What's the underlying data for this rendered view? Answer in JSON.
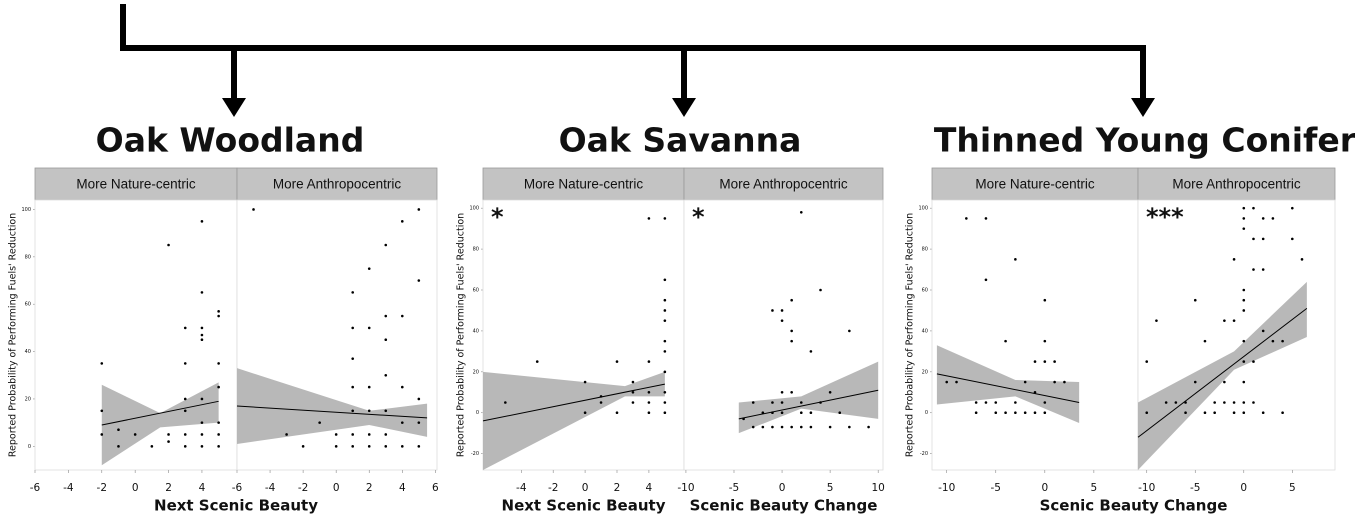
{
  "chart_data": [
    {
      "type": "scatter",
      "title": "Oak Woodland",
      "y_label": "Reported Probability of Performing Fuels' Reduction",
      "x_label": "Next Scenic Beauty",
      "ylim": [
        -10,
        104
      ],
      "yticks": [
        0,
        20,
        40,
        60,
        80,
        100
      ],
      "facets": [
        {
          "label": "More Nature-centric",
          "xlim": [
            -6,
            6.1
          ],
          "xticks": [
            -6,
            -4,
            -2,
            0,
            2,
            4
          ],
          "x": [
            -2,
            -2,
            -2,
            -1,
            -1,
            0,
            1,
            2,
            2,
            2,
            3,
            3,
            3,
            3,
            3,
            3,
            4,
            4,
            4,
            4,
            4,
            4,
            4,
            4,
            4,
            5,
            5,
            5,
            5,
            5,
            5,
            5
          ],
          "y": [
            35,
            15,
            5,
            7,
            0,
            5,
            0,
            85,
            5,
            2,
            50,
            35,
            20,
            15,
            5,
            0,
            95,
            65,
            50,
            47,
            45,
            20,
            10,
            5,
            0,
            57,
            55,
            35,
            25,
            10,
            5,
            0
          ],
          "fit": {
            "x": [
              -2,
              5
            ],
            "y": [
              9,
              19
            ]
          },
          "band": {
            "x": [
              -2,
              1.5,
              5
            ],
            "lower": [
              -8,
              8,
              10
            ],
            "upper": [
              26,
              14,
              27
            ]
          }
        },
        {
          "label": "More Anthropocentric",
          "xlim": [
            -6,
            6.1
          ],
          "xticks": [
            -6,
            -4,
            -2,
            0,
            2,
            4,
            6
          ],
          "x": [
            -5,
            -3,
            -2,
            -1,
            0,
            0,
            1,
            1,
            1,
            1,
            1,
            1,
            1,
            2,
            2,
            2,
            2,
            2,
            2,
            3,
            3,
            3,
            3,
            3,
            3,
            3,
            4,
            4,
            4,
            4,
            4,
            5,
            5,
            5,
            5,
            5
          ],
          "y": [
            100,
            5,
            0,
            10,
            5,
            0,
            65,
            50,
            37,
            25,
            15,
            5,
            0,
            75,
            50,
            25,
            15,
            5,
            0,
            85,
            55,
            45,
            30,
            15,
            5,
            0,
            95,
            55,
            25,
            10,
            0,
            100,
            70,
            20,
            10,
            0
          ],
          "fit": {
            "x": [
              -6,
              5.5
            ],
            "y": [
              17,
              12
            ]
          },
          "band": {
            "x": [
              -6,
              2,
              5.5
            ],
            "lower": [
              1,
              9,
              4
            ],
            "upper": [
              33,
              15,
              18
            ]
          }
        }
      ]
    },
    {
      "type": "scatter",
      "title": "Oak Savanna",
      "y_label": "Reported Probability of Performing Fuels' Reduction",
      "ylim": [
        -28,
        104
      ],
      "yticks": [
        -20,
        0,
        20,
        40,
        60,
        80,
        100
      ],
      "facets": [
        {
          "label": "More Nature-centric",
          "x_label": "Next Scenic Beauty",
          "annotation": "*",
          "xlim": [
            -6.4,
            6.2
          ],
          "xticks": [
            -4,
            -2,
            0,
            2,
            4
          ],
          "x": [
            -5,
            -3,
            0,
            0,
            1,
            1,
            2,
            2,
            3,
            3,
            3,
            4,
            4,
            4,
            4,
            4,
            5,
            5,
            5,
            5,
            5,
            5,
            5,
            5,
            5,
            5,
            5
          ],
          "y": [
            5,
            25,
            15,
            0,
            5,
            8,
            25,
            0,
            15,
            10,
            5,
            95,
            25,
            10,
            5,
            0,
            95,
            65,
            55,
            50,
            45,
            35,
            30,
            20,
            10,
            5,
            0
          ],
          "fit": {
            "x": [
              -6.4,
              5
            ],
            "y": [
              -4,
              14
            ]
          },
          "band": {
            "x": [
              -6.4,
              2.5,
              5
            ],
            "lower": [
              -28,
              8,
              8
            ],
            "upper": [
              20,
              13,
              20
            ]
          }
        },
        {
          "label": "More Anthropocentric",
          "x_label": "Scenic Beauty Change",
          "annotation": "*",
          "xlim": [
            -10.2,
            10.5
          ],
          "xticks": [
            -10,
            -5,
            0,
            5,
            10
          ],
          "x": [
            -4,
            -3,
            -3,
            -2,
            -2,
            -1,
            -1,
            -1,
            -1,
            0,
            0,
            0,
            0,
            0,
            0,
            1,
            1,
            1,
            1,
            1,
            2,
            2,
            2,
            2,
            3,
            3,
            3,
            4,
            4,
            5,
            5,
            6,
            7,
            7,
            9
          ],
          "y": [
            -3,
            5,
            -7,
            0,
            -7,
            5,
            0,
            50,
            -7,
            10,
            5,
            0,
            -7,
            45,
            50,
            55,
            40,
            35,
            -7,
            10,
            98,
            5,
            0,
            -7,
            30,
            0,
            -7,
            60,
            5,
            10,
            -7,
            0,
            40,
            -7,
            -7
          ],
          "fit": {
            "x": [
              -4.5,
              10
            ],
            "y": [
              -3,
              11
            ]
          },
          "band": {
            "x": [
              -4.5,
              2,
              10
            ],
            "lower": [
              -10,
              2,
              -3
            ],
            "upper": [
              5,
              8,
              25
            ]
          }
        }
      ]
    },
    {
      "type": "scatter",
      "title": "Thinned Young Conifer",
      "y_label": "Reported Probability of Performing Fuels' Reduction",
      "x_label": "Scenic Beauty Change",
      "ylim": [
        -28,
        104
      ],
      "yticks": [
        -20,
        0,
        20,
        40,
        60,
        80,
        100
      ],
      "facets": [
        {
          "label": "More Nature-centric",
          "xlim": [
            -11.5,
            9.5
          ],
          "xticks": [
            -10,
            -5,
            0,
            5
          ],
          "x": [
            -10,
            -9,
            -8,
            -7,
            -7,
            -6,
            -6,
            -6,
            -5,
            -5,
            -4,
            -4,
            -3,
            -3,
            -3,
            -2,
            -2,
            -1,
            -1,
            -1,
            0,
            0,
            0,
            0,
            0,
            1,
            1,
            2
          ],
          "y": [
            15,
            15,
            95,
            5,
            0,
            95,
            65,
            5,
            5,
            0,
            35,
            0,
            75,
            5,
            0,
            0,
            15,
            10,
            0,
            25,
            55,
            35,
            25,
            5,
            0,
            25,
            15,
            15
          ],
          "fit": {
            "x": [
              -11,
              3.5
            ],
            "y": [
              19,
              5
            ]
          },
          "band": {
            "x": [
              -11,
              -3,
              3.5
            ],
            "lower": [
              4,
              8,
              -5
            ],
            "upper": [
              33,
              16,
              15
            ]
          }
        },
        {
          "label": "More Anthropocentric",
          "annotation": "***",
          "xlim": [
            -10.9,
            9.4
          ],
          "xticks": [
            -10,
            -5,
            0,
            5
          ],
          "x": [
            -10,
            -10,
            -9,
            -8,
            -7,
            -6,
            -6,
            -5,
            -5,
            -4,
            -4,
            -3,
            -3,
            -2,
            -2,
            -2,
            -1,
            -1,
            -1,
            -1,
            0,
            0,
            0,
            0,
            0,
            0,
            0,
            0,
            0,
            0,
            0,
            1,
            1,
            1,
            1,
            1,
            2,
            2,
            2,
            2,
            2,
            3,
            3,
            4,
            4,
            5,
            5,
            6
          ],
          "y": [
            25,
            0,
            45,
            5,
            5,
            5,
            0,
            55,
            15,
            35,
            0,
            5,
            0,
            45,
            15,
            5,
            75,
            45,
            5,
            0,
            100,
            95,
            90,
            60,
            55,
            50,
            35,
            25,
            15,
            5,
            0,
            100,
            85,
            70,
            25,
            5,
            95,
            85,
            70,
            40,
            0,
            95,
            35,
            35,
            0,
            100,
            85,
            75
          ],
          "fit": {
            "x": [
              -10.9,
              6.5
            ],
            "y": [
              -12,
              51
            ]
          },
          "band": {
            "x": [
              -10.9,
              -1,
              6.5
            ],
            "lower": [
              -28,
              21,
              37
            ],
            "upper": [
              5,
              30,
              64
            ]
          }
        }
      ]
    }
  ]
}
